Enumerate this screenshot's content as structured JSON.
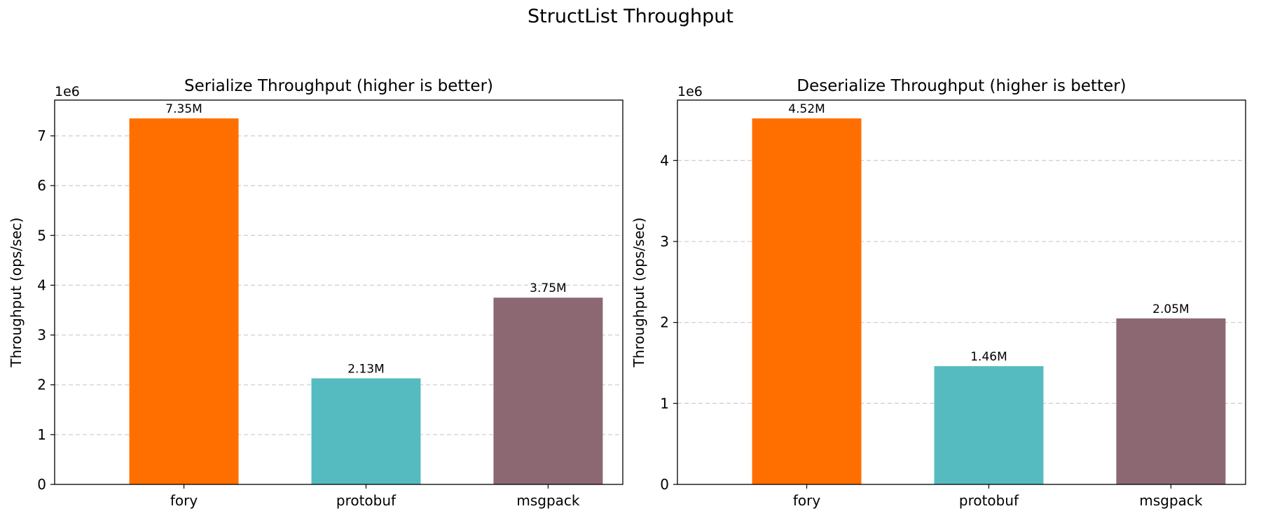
{
  "figure": {
    "title": "StructList Throughput"
  },
  "chart_data": [
    {
      "type": "bar",
      "title": "Serialize Throughput (higher is better)",
      "xlabel": "",
      "ylabel": "Throughput (ops/sec)",
      "offset_text": "1e6",
      "categories": [
        "fory",
        "protobuf",
        "msgpack"
      ],
      "values": [
        7350000,
        2130000,
        3750000
      ],
      "data_labels": [
        "7.35M",
        "2.13M",
        "3.75M"
      ],
      "colors": [
        "#ff6f00",
        "#56bbc0",
        "#8c6873"
      ],
      "ylim": [
        0,
        7717500
      ],
      "yticks": [
        0,
        1000000,
        2000000,
        3000000,
        4000000,
        5000000,
        6000000,
        7000000
      ],
      "ytick_labels": [
        "0",
        "1",
        "2",
        "3",
        "4",
        "5",
        "6",
        "7"
      ],
      "grid": "y-dashed"
    },
    {
      "type": "bar",
      "title": "Deserialize Throughput (higher is better)",
      "xlabel": "",
      "ylabel": "Throughput (ops/sec)",
      "offset_text": "1e6",
      "categories": [
        "fory",
        "protobuf",
        "msgpack"
      ],
      "values": [
        4520000,
        1460000,
        2050000
      ],
      "data_labels": [
        "4.52M",
        "1.46M",
        "2.05M"
      ],
      "colors": [
        "#ff6f00",
        "#56bbc0",
        "#8c6873"
      ],
      "ylim": [
        0,
        4746000
      ],
      "yticks": [
        0,
        1000000,
        2000000,
        3000000,
        4000000
      ],
      "ytick_labels": [
        "0",
        "1",
        "2",
        "3",
        "4"
      ],
      "grid": "y-dashed"
    }
  ]
}
